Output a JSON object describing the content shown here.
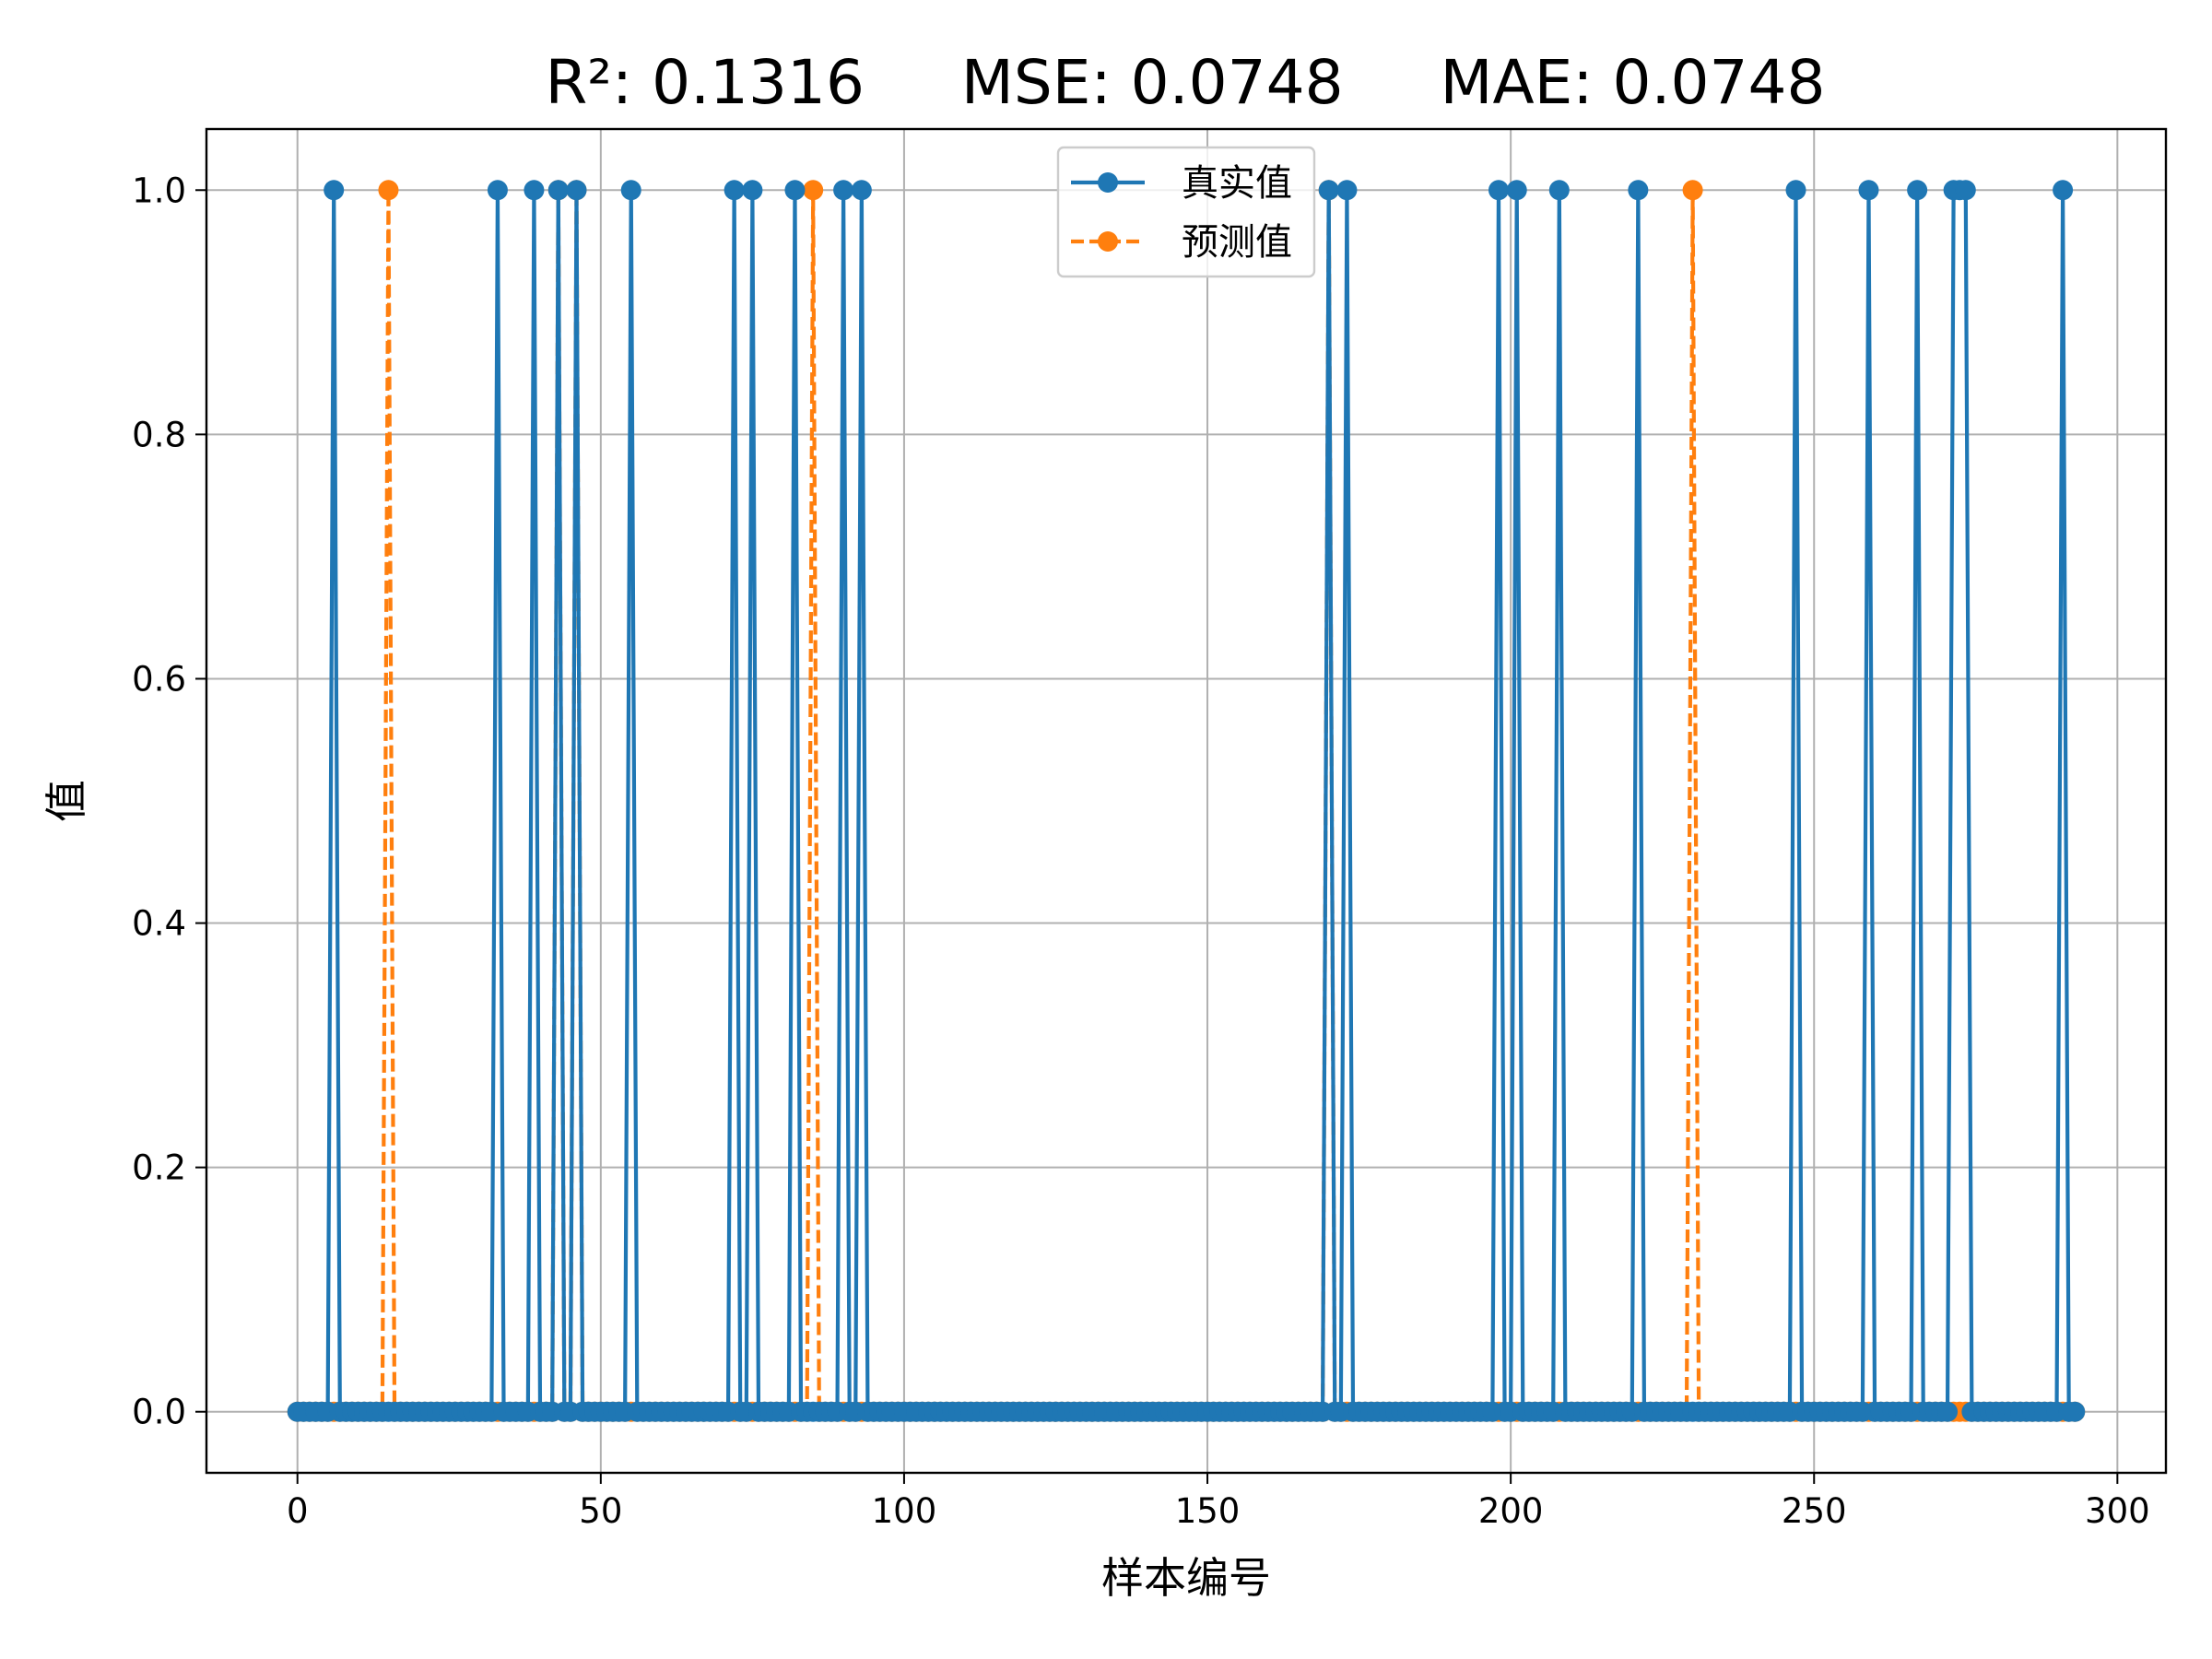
{
  "chart_data": {
    "type": "line",
    "title": "R²: 0.1316     MSE: 0.0748     MAE: 0.0748",
    "xlabel": "样本编号",
    "ylabel": "值",
    "xlim": [
      -15,
      308
    ],
    "ylim": [
      -0.05,
      1.05
    ],
    "x_ticks": [
      0,
      50,
      100,
      150,
      200,
      250,
      300
    ],
    "y_ticks": [
      0.0,
      0.2,
      0.4,
      0.6,
      0.8,
      1.0
    ],
    "x_tick_labels": [
      "0",
      "50",
      "100",
      "150",
      "200",
      "250",
      "300"
    ],
    "y_tick_labels": [
      "0.0",
      "0.2",
      "0.4",
      "0.6",
      "0.8",
      "1.0"
    ],
    "grid": true,
    "legend_position": "top-center",
    "n_samples": 294,
    "series": [
      {
        "name": "真实值",
        "color": "#1f77b4",
        "line_style": "solid",
        "marker": "circle",
        "one_indices": [
          6,
          33,
          39,
          43,
          46,
          55,
          72,
          75,
          82,
          90,
          93,
          170,
          173,
          198,
          201,
          208,
          221,
          247,
          259,
          267,
          273,
          274,
          275,
          291
        ]
      },
      {
        "name": "预测值",
        "color": "#ff7f0e",
        "line_style": "dashed",
        "marker": "circle",
        "one_indices": [
          15,
          43,
          46,
          85,
          170,
          230
        ]
      }
    ]
  }
}
